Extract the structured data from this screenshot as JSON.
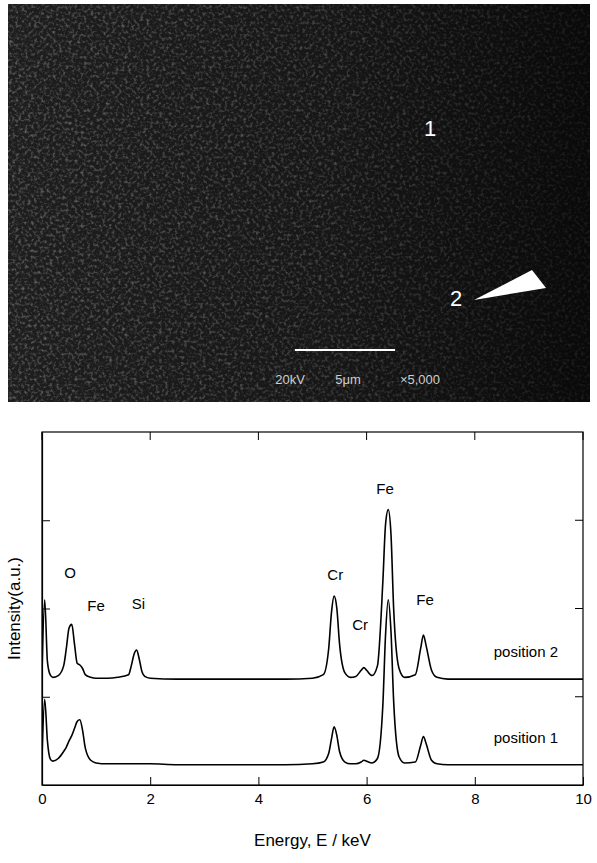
{
  "micrograph": {
    "point_labels": [
      "1",
      "2"
    ],
    "scale_bar_label": "5μm",
    "info_labels": [
      "20kV",
      "×5,000"
    ]
  },
  "chart_data": {
    "type": "line",
    "x_label": "Energy, E / keV",
    "y_label": "Intensity(a.u.)",
    "x": [
      0,
      0.05,
      0.1,
      0.15,
      0.2,
      0.3,
      0.4,
      0.45,
      0.5,
      0.55,
      0.6,
      0.65,
      0.7,
      0.75,
      0.8,
      0.9,
      1.0,
      1.2,
      1.4,
      1.6,
      1.65,
      1.7,
      1.75,
      1.8,
      1.85,
      1.9,
      2.0,
      2.5,
      3,
      3.5,
      4,
      4.5,
      5.0,
      5.2,
      5.3,
      5.35,
      5.4,
      5.45,
      5.5,
      5.6,
      5.7,
      5.8,
      5.9,
      5.95,
      6.0,
      6.1,
      6.2,
      6.3,
      6.35,
      6.4,
      6.45,
      6.5,
      6.6,
      6.7,
      6.9,
      7.0,
      7.05,
      7.1,
      7.2,
      7.3,
      7.5,
      8,
      8.5,
      9,
      9.5,
      10
    ],
    "series": [
      {
        "name": "position 2",
        "color": "#000000",
        "values": [
          1.25,
          2.1,
          1.4,
          1.25,
          1.22,
          1.24,
          1.35,
          1.55,
          1.78,
          1.82,
          1.6,
          1.38,
          1.36,
          1.32,
          1.25,
          1.22,
          1.21,
          1.21,
          1.22,
          1.25,
          1.35,
          1.48,
          1.53,
          1.42,
          1.28,
          1.23,
          1.21,
          1.2,
          1.2,
          1.2,
          1.2,
          1.2,
          1.21,
          1.25,
          1.55,
          1.95,
          2.14,
          2.0,
          1.6,
          1.27,
          1.22,
          1.23,
          1.3,
          1.33,
          1.3,
          1.24,
          1.35,
          2.3,
          2.95,
          3.12,
          2.85,
          2.0,
          1.32,
          1.22,
          1.25,
          1.55,
          1.7,
          1.58,
          1.3,
          1.22,
          1.2,
          1.2,
          1.2,
          1.2,
          1.2,
          1.2
        ]
      },
      {
        "name": "position 1",
        "color": "#000000",
        "values": [
          0.3,
          0.97,
          0.5,
          0.3,
          0.27,
          0.3,
          0.38,
          0.43,
          0.5,
          0.56,
          0.64,
          0.72,
          0.74,
          0.62,
          0.42,
          0.28,
          0.25,
          0.24,
          0.24,
          0.24,
          0.24,
          0.24,
          0.24,
          0.24,
          0.24,
          0.24,
          0.24,
          0.23,
          0.23,
          0.23,
          0.23,
          0.23,
          0.24,
          0.26,
          0.36,
          0.52,
          0.66,
          0.56,
          0.38,
          0.26,
          0.24,
          0.24,
          0.26,
          0.28,
          0.27,
          0.25,
          0.3,
          0.9,
          1.7,
          2.1,
          1.75,
          0.95,
          0.32,
          0.25,
          0.26,
          0.45,
          0.55,
          0.47,
          0.28,
          0.24,
          0.23,
          0.23,
          0.23,
          0.23,
          0.23,
          0.23
        ]
      }
    ],
    "xlim": [
      0,
      10
    ],
    "xticks": [
      0,
      2,
      4,
      6,
      8,
      10
    ],
    "ylim": [
      0,
      4
    ],
    "yticks": [
      1,
      2,
      3
    ],
    "tick_labels": "x",
    "annotations": [
      {
        "text": "O",
        "x": 0.52,
        "y": 2.35
      },
      {
        "text": "Fe",
        "x": 1.0,
        "y": 1.97
      },
      {
        "text": "Si",
        "x": 1.78,
        "y": 2.0
      },
      {
        "text": "Cr",
        "x": 5.42,
        "y": 2.32
      },
      {
        "text": "Cr",
        "x": 5.88,
        "y": 1.76
      },
      {
        "text": "Fe",
        "x": 6.34,
        "y": 3.3
      },
      {
        "text": "Fe",
        "x": 7.08,
        "y": 2.04
      }
    ]
  }
}
